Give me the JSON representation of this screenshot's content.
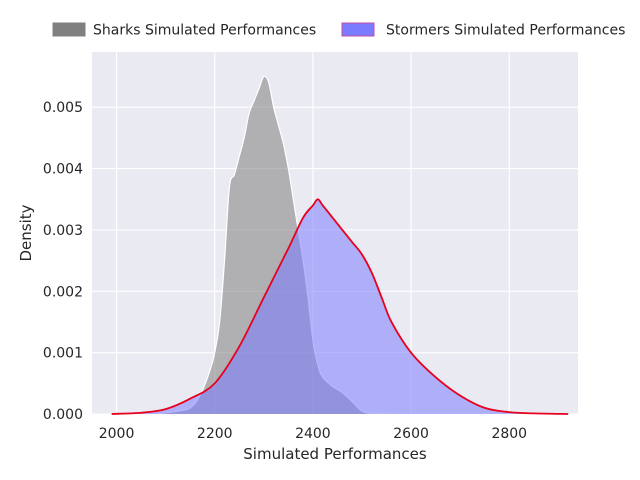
{
  "chart_data": {
    "type": "area",
    "title": "",
    "xlabel": "Simulated Performances",
    "ylabel": "Density",
    "xlim": [
      1950,
      2940
    ],
    "ylim": [
      0,
      0.0059
    ],
    "xticks": [
      2000,
      2200,
      2400,
      2600,
      2800
    ],
    "xtick_labels": [
      "2000",
      "2200",
      "2400",
      "2600",
      "2800"
    ],
    "yticks": [
      0,
      0.001,
      0.002,
      0.003,
      0.004,
      0.005
    ],
    "ytick_labels": [
      "0.000",
      "0.001",
      "0.002",
      "0.003",
      "0.004",
      "0.005"
    ],
    "grid": true,
    "legend_position": "top-center",
    "series": [
      {
        "name": "Sharks Simulated Performances",
        "fill": "#808080",
        "fill_opacity": 0.55,
        "stroke": "#ffffff",
        "x": [
          2080,
          2120,
          2150,
          2170,
          2190,
          2200,
          2210,
          2220,
          2230,
          2240,
          2250,
          2260,
          2270,
          2280,
          2290,
          2300,
          2310,
          2320,
          2330,
          2340,
          2350,
          2360,
          2370,
          2380,
          2390,
          2400,
          2410,
          2420,
          2440,
          2460,
          2480,
          2500,
          2520,
          2560
        ],
        "y": [
          0,
          4e-05,
          0.0001,
          0.0003,
          0.0007,
          0.001,
          0.0015,
          0.0025,
          0.0037,
          0.0039,
          0.0042,
          0.0045,
          0.0049,
          0.0051,
          0.0053,
          0.0055,
          0.0054,
          0.005,
          0.0047,
          0.0044,
          0.004,
          0.0035,
          0.003,
          0.0025,
          0.0019,
          0.0012,
          0.0008,
          0.0006,
          0.00045,
          0.00035,
          0.0002,
          5e-05,
          1e-05,
          0
        ]
      },
      {
        "name": "Stormers Simulated Performances",
        "fill": "#7b7bff",
        "fill_opacity": 0.55,
        "stroke": "#e8001e",
        "x": [
          1990,
          2050,
          2100,
          2150,
          2200,
          2250,
          2300,
          2350,
          2380,
          2400,
          2410,
          2420,
          2440,
          2460,
          2480,
          2500,
          2520,
          2540,
          2560,
          2600,
          2650,
          2700,
          2750,
          2800,
          2850,
          2920
        ],
        "y": [
          0,
          2e-05,
          8e-05,
          0.00025,
          0.0005,
          0.0011,
          0.0019,
          0.0027,
          0.0032,
          0.0034,
          0.0035,
          0.0034,
          0.0032,
          0.003,
          0.0028,
          0.0026,
          0.0023,
          0.0019,
          0.0015,
          0.001,
          0.0006,
          0.0003,
          0.0001,
          3e-05,
          1e-05,
          0
        ]
      }
    ]
  }
}
